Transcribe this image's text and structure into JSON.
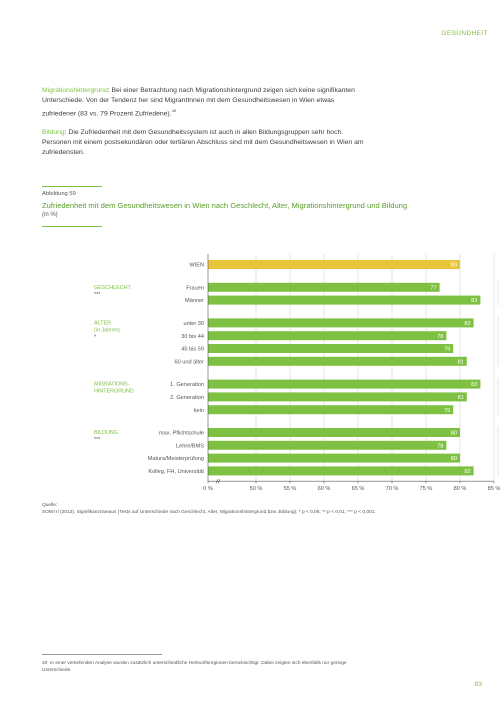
{
  "header": {
    "section": "GESUNDHEIT"
  },
  "paragraphs": [
    {
      "keyword": "Migrationshintergrund",
      "text": ": Bei einer Betrachtung nach Migrationshintergrund zeigen sich keine signifikanten Unterschiede. Von der Tendenz her sind MigrantInnen mit dem Gesundheitswesen in Wien etwas zufriedener (83 vs. 79 Prozent Zufriedene).",
      "footnote_ref": "40"
    },
    {
      "keyword": "Bildung",
      "text": ": Die Zufriedenheit mit dem Gesundheitssystem ist auch in allen Bildungsgruppen sehr hoch. Personen mit einem postsekundären oder tertiären Abschluss sind mit dem Gesundheitswesen in Wien am zufriedensten."
    }
  ],
  "figure": {
    "number": "Abbildung 59",
    "title": "Zufriedenheit mit dem Gesundheitswesen in Wien nach Geschlecht, Alter, Migrationshintergrund und Bildung",
    "subtitle": "(in %)",
    "source_label": "Quelle:",
    "source_text": "SOWI II (2013). Signifikanzniveaus (Tests auf Unterschiede nach Geschlecht, Alter, Migrationshintergrund bzw. Bildung): * p < 0,05; ** p < 0,01; *** p < 0,001."
  },
  "chart_data": {
    "type": "bar",
    "orientation": "horizontal",
    "xlim": [
      45,
      85
    ],
    "axis_break": true,
    "x_ticks": [
      0,
      50,
      55,
      60,
      65,
      70,
      75,
      80,
      85
    ],
    "x_tick_labels": [
      "0 %",
      "50 %",
      "55 %",
      "60 %",
      "65 %",
      "70 %",
      "75 %",
      "80 %",
      "85 %"
    ],
    "colors": {
      "total": "#e8c53a",
      "group": "#7ec142",
      "label": "#7ec142",
      "grid": "#d5d5d5"
    },
    "groups": [
      {
        "label": "",
        "sig": "",
        "highlight": true,
        "bars": [
          {
            "category": "WIEN",
            "value": 80
          }
        ]
      },
      {
        "label": "GESCHLECHT",
        "sig": "***",
        "bars": [
          {
            "category": "Frauen",
            "value": 77
          },
          {
            "category": "Männer",
            "value": 83
          }
        ]
      },
      {
        "label": "ALTER",
        "label2": "(in Jahren)",
        "sig": "*",
        "bars": [
          {
            "category": "unter 30",
            "value": 82
          },
          {
            "category": "30 bis 44",
            "value": 78
          },
          {
            "category": "45 bis 59",
            "value": 79
          },
          {
            "category": "60 und älter",
            "value": 81
          }
        ]
      },
      {
        "label": "MIGRATIONS-",
        "label2": "HINTERGRUND",
        "sig": "",
        "bars": [
          {
            "category": "1. Generation",
            "value": 83
          },
          {
            "category": "2. Generation",
            "value": 81
          },
          {
            "category": "kein",
            "value": 79
          }
        ]
      },
      {
        "label": "BILDUNG",
        "sig": "***",
        "bars": [
          {
            "category": "max. Pflichtschule",
            "value": 80
          },
          {
            "category": "Lehre/BMS",
            "value": 78
          },
          {
            "category": "Matura/Meisterprüfung",
            "value": 80
          },
          {
            "category": "Kolleg, FH, Universität",
            "value": 82
          }
        ]
      }
    ]
  },
  "footnote": {
    "number": "40",
    "text": "In einer vertiefenden Analyse wurden zusätzlich unterschiedliche Herkunftsregionen berücksichtigt. Dabei zeigten sich ebenfalls nur geringe Unterschiede."
  },
  "page_number": "83"
}
